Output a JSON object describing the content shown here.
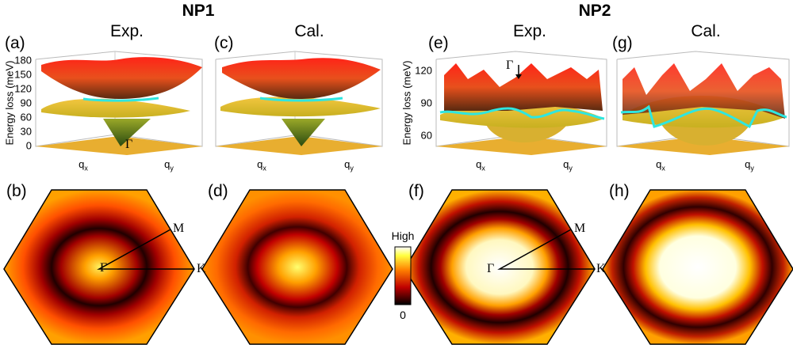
{
  "groups": [
    {
      "title": "NP1"
    },
    {
      "title": "NP2"
    }
  ],
  "panels": {
    "a": {
      "label": "(a)",
      "title": "Exp."
    },
    "c": {
      "label": "(c)",
      "title": "Cal."
    },
    "e": {
      "label": "(e)",
      "title": "Exp."
    },
    "g": {
      "label": "(g)",
      "title": "Cal."
    },
    "b": {
      "label": "(b)"
    },
    "d": {
      "label": "(d)"
    },
    "f": {
      "label": "(f)"
    },
    "h": {
      "label": "(h)"
    }
  },
  "symbols": {
    "gamma": "Γ",
    "m": "M",
    "k": "K"
  },
  "axes": {
    "qx": "q",
    "qx_sub": "x",
    "qy": "q",
    "qy_sub": "y"
  },
  "colorbar": {
    "high": "High",
    "low": "0"
  },
  "colors": {
    "cyan": "#2ee6e0",
    "red": "#ff2a1a",
    "yellow": "#f0c030"
  },
  "chart_data": [
    {
      "type": "surface",
      "panel": "a",
      "title": "Exp.",
      "group": "NP1",
      "ylabel": "Energy loss (meV)",
      "yticks": [
        "0",
        "30",
        "60",
        "90",
        "120",
        "150",
        "180"
      ],
      "ylim": [
        0,
        180
      ],
      "xlabel": "qx",
      "zlabel": "qy"
    },
    {
      "type": "surface",
      "panel": "c",
      "title": "Cal.",
      "group": "NP1",
      "ylim": [
        0,
        180
      ]
    },
    {
      "type": "surface",
      "panel": "e",
      "title": "Exp.",
      "group": "NP2",
      "ylabel": "Energy loss (meV)",
      "yticks": [
        "60",
        "90",
        "120"
      ],
      "ylim": [
        50,
        130
      ]
    },
    {
      "type": "surface",
      "panel": "g",
      "title": "Cal.",
      "group": "NP2",
      "ylim": [
        50,
        130
      ]
    },
    {
      "type": "heatmap",
      "panel": "b",
      "shape": "hexagon",
      "points": [
        "Γ",
        "M",
        "K"
      ]
    },
    {
      "type": "heatmap",
      "panel": "d",
      "shape": "hexagon"
    },
    {
      "type": "heatmap",
      "panel": "f",
      "shape": "hexagon",
      "points": [
        "Γ",
        "M",
        "K"
      ]
    },
    {
      "type": "heatmap",
      "panel": "h",
      "shape": "hexagon"
    }
  ]
}
